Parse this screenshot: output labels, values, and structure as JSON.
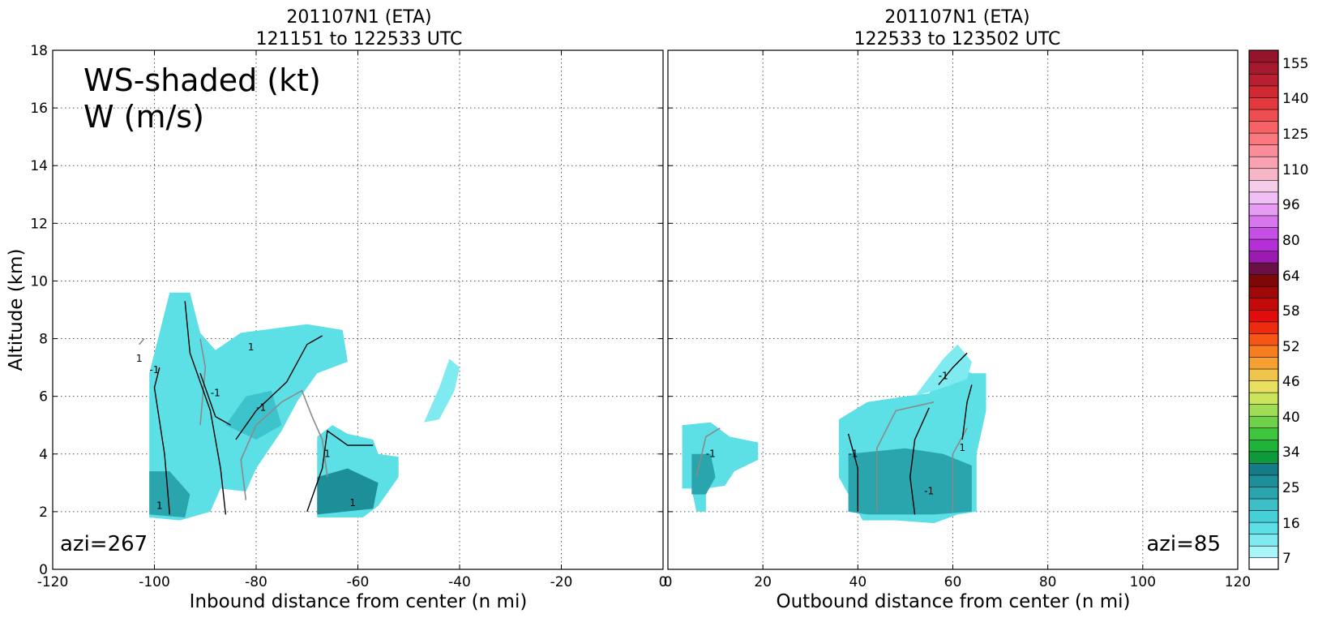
{
  "chart_data": [
    {
      "type": "heatmap",
      "title_line1": "201107N1 (ETA)",
      "title_line2": "121151 to 122533 UTC",
      "xlabel": "Inbound distance from center (n mi)",
      "ylabel": "Altitude (km)",
      "xlim": [
        -120,
        0
      ],
      "ylim": [
        0,
        18
      ],
      "x_ticks": [
        "-120",
        "-100",
        "-80",
        "-60",
        "-40",
        "-20",
        "0"
      ],
      "y_ticks": [
        "0",
        "2",
        "4",
        "6",
        "8",
        "10",
        "12",
        "14",
        "16",
        "18"
      ],
      "grid": true,
      "annotation_line1": "WS-shaded (kt)",
      "annotation_line2": "W (m/s)",
      "azimuth_label": "azi=267",
      "contour_labels": [
        "-1",
        "1"
      ],
      "shaded_regions": [
        {
          "name": "main-echo",
          "color": "#5ddfe6",
          "polygon": [
            [
              -101,
              1.8
            ],
            [
              -101,
              6.8
            ],
            [
              -97,
              9.6
            ],
            [
              -93,
              9.6
            ],
            [
              -91,
              8.2
            ],
            [
              -88,
              7.6
            ],
            [
              -83,
              8.2
            ],
            [
              -70,
              8.5
            ],
            [
              -63,
              8.3
            ],
            [
              -62,
              7.2
            ],
            [
              -68,
              6.8
            ],
            [
              -72,
              5.8
            ],
            [
              -75,
              4.8
            ],
            [
              -80,
              3.5
            ],
            [
              -82,
              2.7
            ],
            [
              -87,
              2.8
            ],
            [
              -89,
              2.0
            ],
            [
              -95,
              1.7
            ]
          ]
        },
        {
          "name": "lower-echo",
          "color": "#5ddfe6",
          "polygon": [
            [
              -68,
              1.8
            ],
            [
              -68,
              4.6
            ],
            [
              -65,
              5.0
            ],
            [
              -62,
              4.7
            ],
            [
              -57,
              4.5
            ],
            [
              -56,
              4.0
            ],
            [
              -52,
              3.9
            ],
            [
              -52,
              3.2
            ],
            [
              -56,
              2.2
            ],
            [
              -59,
              1.8
            ]
          ]
        },
        {
          "name": "isolated-echo",
          "color": "#7feaf0",
          "polygon": [
            [
              -47,
              5.1
            ],
            [
              -44,
              5.2
            ],
            [
              -41,
              6.2
            ],
            [
              -40,
              7.0
            ],
            [
              -42,
              7.3
            ],
            [
              -44,
              6.3
            ]
          ]
        },
        {
          "name": "core-dark-1",
          "color": "#2aa4ad",
          "polygon": [
            [
              -101,
              1.9
            ],
            [
              -101,
              3.4
            ],
            [
              -97,
              3.4
            ],
            [
              -93,
              2.6
            ],
            [
              -94,
              1.8
            ]
          ]
        },
        {
          "name": "core-dark-2",
          "color": "#1d8f99",
          "polygon": [
            [
              -68,
              1.9
            ],
            [
              -68,
              3.2
            ],
            [
              -62,
              3.5
            ],
            [
              -56,
              3.0
            ],
            [
              -57,
              2.1
            ]
          ]
        },
        {
          "name": "core-mid",
          "color": "#3cc3cb",
          "polygon": [
            [
              -86,
              5.0
            ],
            [
              -82,
              6.0
            ],
            [
              -77,
              6.2
            ],
            [
              -75,
              5.0
            ],
            [
              -80,
              4.5
            ]
          ]
        }
      ]
    },
    {
      "type": "heatmap",
      "title_line1": "201107N1 (ETA)",
      "title_line2": "122533 to 123502 UTC",
      "xlabel": "Outbound distance from center (n mi)",
      "ylabel": "",
      "xlim": [
        0,
        120
      ],
      "ylim": [
        0,
        18
      ],
      "x_ticks": [
        "0",
        "20",
        "40",
        "60",
        "80",
        "100",
        "120"
      ],
      "grid": true,
      "azimuth_label": "azi=85",
      "contour_labels": [
        "-1",
        "1"
      ],
      "shaded_regions": [
        {
          "name": "left-echo",
          "color": "#5ddfe6",
          "polygon": [
            [
              3,
              2.8
            ],
            [
              3,
              5.0
            ],
            [
              9,
              5.1
            ],
            [
              13,
              4.6
            ],
            [
              16,
              4.5
            ],
            [
              19,
              4.4
            ],
            [
              19,
              3.8
            ],
            [
              14,
              3.4
            ],
            [
              12,
              2.9
            ],
            [
              8,
              2.8
            ],
            [
              8,
              2.0
            ],
            [
              6,
              2.0
            ],
            [
              5,
              2.8
            ]
          ]
        },
        {
          "name": "main-echo",
          "color": "#5ddfe6",
          "polygon": [
            [
              36,
              3.2
            ],
            [
              36,
              5.2
            ],
            [
              42,
              5.8
            ],
            [
              50,
              6.0
            ],
            [
              55,
              6.1
            ],
            [
              58,
              6.8
            ],
            [
              61,
              7.0
            ],
            [
              64,
              6.8
            ],
            [
              67,
              6.8
            ],
            [
              67,
              5.5
            ],
            [
              65,
              4.0
            ],
            [
              65,
              2.0
            ],
            [
              61,
              1.9
            ],
            [
              56,
              1.6
            ],
            [
              48,
              1.7
            ],
            [
              41,
              1.7
            ],
            [
              38,
              2.6
            ]
          ]
        },
        {
          "name": "main-echo-top",
          "color": "#7feaf0",
          "polygon": [
            [
              52,
              6.0
            ],
            [
              58,
              7.3
            ],
            [
              61,
              7.8
            ],
            [
              64,
              7.2
            ],
            [
              63,
              6.6
            ],
            [
              58,
              6.3
            ]
          ]
        },
        {
          "name": "core-dark",
          "color": "#2aa4ad",
          "polygon": [
            [
              38,
              2.0
            ],
            [
              38,
              4.0
            ],
            [
              50,
              4.2
            ],
            [
              58,
              4.0
            ],
            [
              64,
              3.6
            ],
            [
              64,
              2.0
            ],
            [
              56,
              1.9
            ],
            [
              42,
              1.9
            ]
          ]
        },
        {
          "name": "left-core",
          "color": "#2aa4ad",
          "polygon": [
            [
              5,
              2.6
            ],
            [
              5,
              4.0
            ],
            [
              9,
              4.0
            ],
            [
              10,
              3.2
            ],
            [
              8,
              2.6
            ]
          ]
        }
      ]
    }
  ],
  "colorbar": {
    "tick_labels": [
      "7",
      "16",
      "25",
      "34",
      "40",
      "46",
      "52",
      "58",
      "64",
      "80",
      "96",
      "110",
      "125",
      "140",
      "155"
    ],
    "colors": [
      "#ffffff",
      "#aaf5f8",
      "#7feaf0",
      "#5ddfe6",
      "#46cfd7",
      "#3cbfc7",
      "#2aa4ad",
      "#1d8f99",
      "#137c86",
      "#0d9a3a",
      "#1fb33a",
      "#3fc43d",
      "#6fd04a",
      "#a0dc55",
      "#cce35c",
      "#e8e061",
      "#f0c44c",
      "#f5a030",
      "#f77e20",
      "#f55515",
      "#ef2b0f",
      "#e10c0c",
      "#c20a0a",
      "#9f0808",
      "#7e0707",
      "#6b0f47",
      "#9a1bb0",
      "#b52fd6",
      "#c64fe6",
      "#d877ed",
      "#e59cf2",
      "#efbff5",
      "#f5cde8",
      "#f8b7c9",
      "#f9a2b1",
      "#fa8d99",
      "#f97880",
      "#f56366",
      "#ee4d51",
      "#e2393f",
      "#cf2a34",
      "#b81f30",
      "#a5182d",
      "#95142b"
    ]
  }
}
